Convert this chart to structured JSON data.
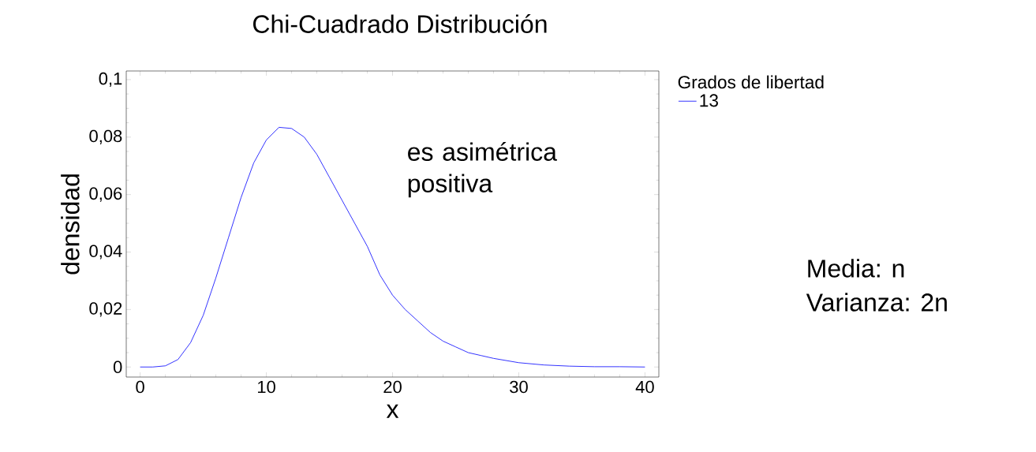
{
  "chart_data": {
    "type": "line",
    "title": "Chi-Cuadrado Distribución",
    "xlabel": "x",
    "ylabel": "densidad",
    "legend_title": "Grados de libertad",
    "xlim": [
      -1.1,
      41.1
    ],
    "ylim": [
      -0.0035,
      0.103
    ],
    "xticks": [
      0,
      10,
      20,
      30,
      40
    ],
    "yticks": [
      {
        "value": 0,
        "label": "0"
      },
      {
        "value": 0.02,
        "label": "0,02"
      },
      {
        "value": 0.04,
        "label": "0,04"
      },
      {
        "value": 0.06,
        "label": "0,06"
      },
      {
        "value": 0.08,
        "label": "0,08"
      },
      {
        "value": 0.1,
        "label": "0,1"
      }
    ],
    "x": [
      0,
      1,
      2,
      3,
      4,
      5,
      6,
      7,
      8,
      9,
      10,
      11,
      12,
      13,
      14,
      15,
      16,
      17,
      18,
      19,
      20,
      21,
      22,
      23,
      24,
      25,
      26,
      27,
      28,
      30,
      32,
      34,
      36,
      38,
      40
    ],
    "series": [
      {
        "name": "13",
        "color": "#0000ff",
        "values": [
          0,
          0,
          0.0004,
          0.0026,
          0.0085,
          0.018,
          0.031,
          0.045,
          0.059,
          0.071,
          0.079,
          0.0834,
          0.083,
          0.08,
          0.074,
          0.066,
          0.058,
          0.05,
          0.042,
          0.032,
          0.025,
          0.02,
          0.016,
          0.012,
          0.009,
          0.007,
          0.005,
          0.004,
          0.003,
          0.0015,
          0.0007,
          0.0003,
          0.0001,
          0.0001,
          0
        ]
      }
    ],
    "annotations": [
      "es asimétrica positiva",
      "Media: n",
      "Varianza: 2n"
    ],
    "grid": false,
    "legend": "top right",
    "marker": "none",
    "line_style": "solid"
  }
}
